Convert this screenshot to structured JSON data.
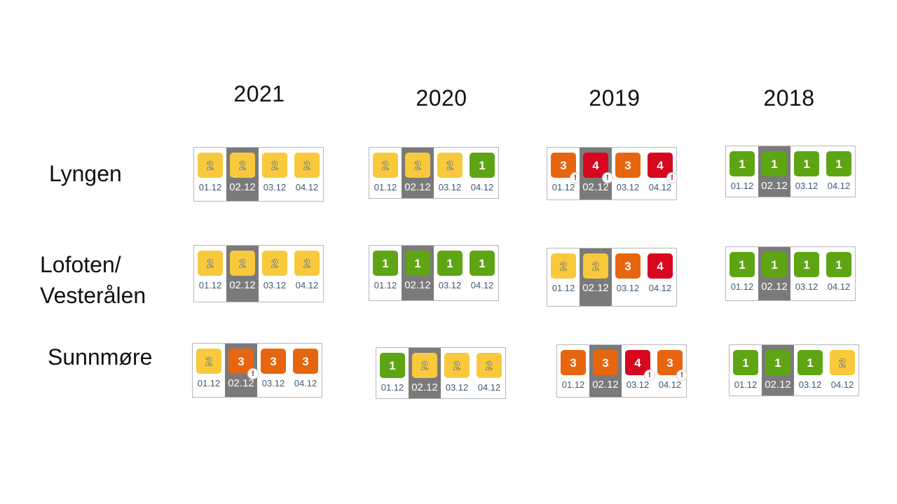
{
  "colors": {
    "1": "#5ea513",
    "2": "#f8c93c",
    "3": "#e8650f",
    "4": "#d6071e"
  },
  "years": [
    "2021",
    "2020",
    "2019",
    "2018"
  ],
  "regions": [
    {
      "name": "Lyngen",
      "forecasts": [
        {
          "year": "2021",
          "days": [
            {
              "date": "01.12",
              "level": "2",
              "warning": false
            },
            {
              "date": "02.12",
              "level": "2",
              "warning": false
            },
            {
              "date": "03.12",
              "level": "2",
              "warning": false
            },
            {
              "date": "04.12",
              "level": "2",
              "warning": false
            }
          ]
        },
        {
          "year": "2020",
          "days": [
            {
              "date": "01.12",
              "level": "2",
              "warning": false
            },
            {
              "date": "02.12",
              "level": "2",
              "warning": false
            },
            {
              "date": "03.12",
              "level": "2",
              "warning": false
            },
            {
              "date": "04.12",
              "level": "1",
              "warning": false
            }
          ]
        },
        {
          "year": "2019",
          "days": [
            {
              "date": "01.12",
              "level": "3",
              "warning": true
            },
            {
              "date": "02.12",
              "level": "4",
              "warning": true
            },
            {
              "date": "03.12",
              "level": "3",
              "warning": false
            },
            {
              "date": "04.12",
              "level": "4",
              "warning": true
            }
          ]
        },
        {
          "year": "2018",
          "days": [
            {
              "date": "01.12",
              "level": "1",
              "warning": false
            },
            {
              "date": "02.12",
              "level": "1",
              "warning": false
            },
            {
              "date": "03.12",
              "level": "1",
              "warning": false
            },
            {
              "date": "04.12",
              "level": "1",
              "warning": false
            }
          ]
        }
      ]
    },
    {
      "name": "Lofoten/\nVesterålen",
      "forecasts": [
        {
          "year": "2021",
          "days": [
            {
              "date": "01.12",
              "level": "2",
              "warning": false
            },
            {
              "date": "02.12",
              "level": "2",
              "warning": false
            },
            {
              "date": "03.12",
              "level": "2",
              "warning": false
            },
            {
              "date": "04.12",
              "level": "2",
              "warning": false
            }
          ]
        },
        {
          "year": "2020",
          "days": [
            {
              "date": "01.12",
              "level": "1",
              "warning": false
            },
            {
              "date": "02.12",
              "level": "1",
              "warning": false
            },
            {
              "date": "03.12",
              "level": "1",
              "warning": false
            },
            {
              "date": "04.12",
              "level": "1",
              "warning": false
            }
          ]
        },
        {
          "year": "2019",
          "days": [
            {
              "date": "01.12",
              "level": "2",
              "warning": false
            },
            {
              "date": "02.12",
              "level": "2",
              "warning": false
            },
            {
              "date": "03.12",
              "level": "3",
              "warning": false
            },
            {
              "date": "04.12",
              "level": "4",
              "warning": false
            }
          ]
        },
        {
          "year": "2018",
          "days": [
            {
              "date": "01.12",
              "level": "1",
              "warning": false
            },
            {
              "date": "02.12",
              "level": "1",
              "warning": false
            },
            {
              "date": "03.12",
              "level": "1",
              "warning": false
            },
            {
              "date": "04.12",
              "level": "1",
              "warning": false
            }
          ]
        }
      ]
    },
    {
      "name": "Sunnmøre",
      "forecasts": [
        {
          "year": "2021",
          "days": [
            {
              "date": "01.12",
              "level": "2",
              "warning": false
            },
            {
              "date": "02.12",
              "level": "3",
              "warning": true
            },
            {
              "date": "03.12",
              "level": "3",
              "warning": false
            },
            {
              "date": "04.12",
              "level": "3",
              "warning": false
            }
          ]
        },
        {
          "year": "2020",
          "days": [
            {
              "date": "01.12",
              "level": "1",
              "warning": false
            },
            {
              "date": "02.12",
              "level": "2",
              "warning": false
            },
            {
              "date": "03.12",
              "level": "2",
              "warning": false
            },
            {
              "date": "04.12",
              "level": "2",
              "warning": false
            }
          ]
        },
        {
          "year": "2019",
          "days": [
            {
              "date": "01.12",
              "level": "3",
              "warning": false
            },
            {
              "date": "02.12",
              "level": "3",
              "warning": false
            },
            {
              "date": "03.12",
              "level": "4",
              "warning": true
            },
            {
              "date": "04.12",
              "level": "3",
              "warning": true
            }
          ]
        },
        {
          "year": "2018",
          "days": [
            {
              "date": "01.12",
              "level": "1",
              "warning": false
            },
            {
              "date": "02.12",
              "level": "1",
              "warning": false
            },
            {
              "date": "03.12",
              "level": "1",
              "warning": false
            },
            {
              "date": "04.12",
              "level": "2",
              "warning": false
            }
          ]
        }
      ]
    }
  ]
}
